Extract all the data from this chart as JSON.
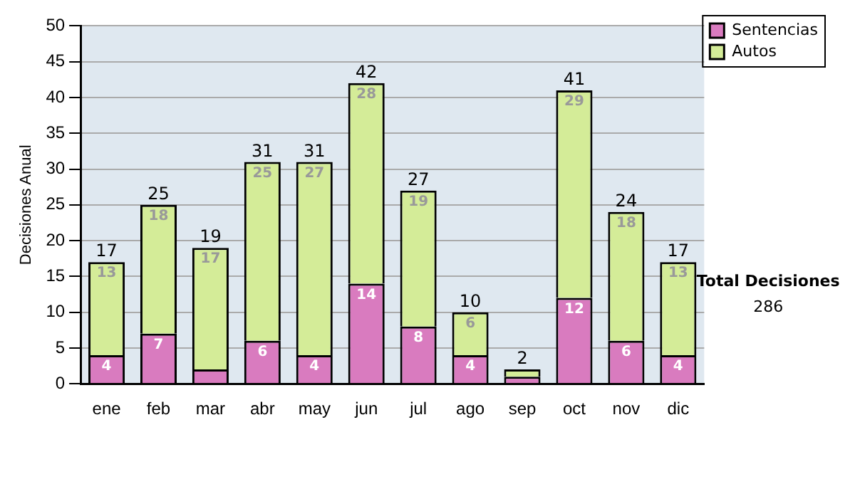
{
  "chart_data": {
    "type": "bar",
    "stacked": true,
    "ylabel": "Decisiones Anual",
    "categories": [
      "ene",
      "feb",
      "mar",
      "abr",
      "may",
      "jun",
      "jul",
      "ago",
      "sep",
      "oct",
      "nov",
      "dic"
    ],
    "series": [
      {
        "name": "Sentencias",
        "color": "#d97bbf",
        "values": [
          4,
          7,
          2,
          6,
          4,
          14,
          8,
          4,
          1,
          12,
          6,
          4
        ],
        "value_labels": [
          "4",
          "7",
          null,
          "6",
          "4",
          "14",
          "8",
          "4",
          null,
          "12",
          "6",
          "4"
        ]
      },
      {
        "name": "Autos",
        "color": "#d4ec98",
        "values": [
          13,
          18,
          17,
          25,
          27,
          28,
          19,
          6,
          1,
          29,
          18,
          13
        ],
        "value_labels": [
          "13",
          "18",
          "17",
          "25",
          "27",
          "28",
          "19",
          "6",
          null,
          "29",
          "18",
          "13"
        ]
      }
    ],
    "totals": [
      "17",
      "25",
      "19",
      "31",
      "31",
      "42",
      "27",
      "10",
      "2",
      "41",
      "24",
      "17"
    ],
    "ylim": [
      0,
      50
    ],
    "yticks": [
      0,
      5,
      10,
      15,
      20,
      25,
      30,
      35,
      40,
      45,
      50
    ],
    "grid": "y",
    "legend": "right",
    "annotations": [
      "Total Decisiones",
      "286"
    ]
  }
}
